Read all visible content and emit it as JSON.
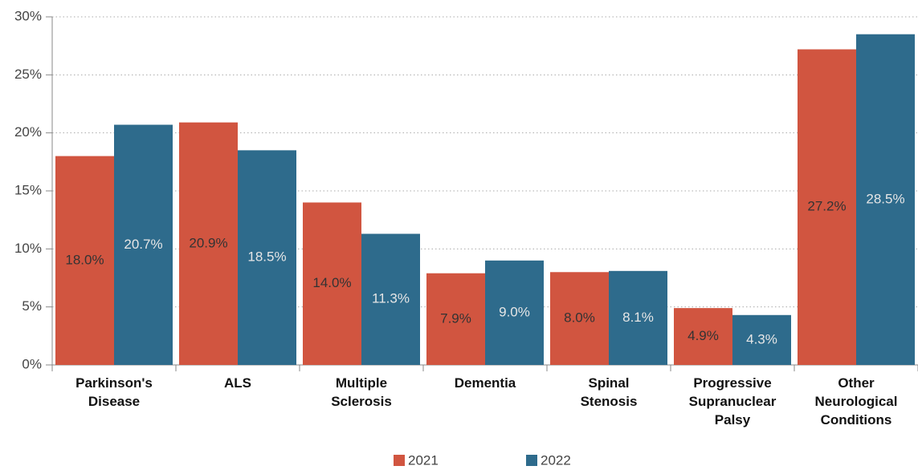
{
  "chart_data": {
    "type": "bar",
    "categories": [
      "Parkinson's Disease",
      "ALS",
      "Multiple Sclerosis",
      "Dementia",
      "Spinal Stenosis",
      "Progressive Supranuclear Palsy",
      "Other Neurological Conditions"
    ],
    "series": [
      {
        "name": "2021",
        "color": "#d15540",
        "values": [
          18.0,
          20.9,
          14.0,
          7.9,
          8.0,
          4.9,
          27.2
        ],
        "value_labels": [
          "18.0%",
          "20.9%",
          "14.0%",
          "7.9%",
          "8.0%",
          "4.9%",
          "27.2%"
        ]
      },
      {
        "name": "2022",
        "color": "#2e6b8c",
        "values": [
          20.7,
          18.5,
          11.3,
          9.0,
          8.1,
          4.3,
          28.5
        ],
        "value_labels": [
          "20.7%",
          "18.5%",
          "11.3%",
          "9.0%",
          "8.1%",
          "4.3%",
          "28.5%"
        ]
      }
    ],
    "ylim": [
      0,
      30
    ],
    "yticks": [
      {
        "value": 0,
        "label": "0%"
      },
      {
        "value": 5,
        "label": "5%"
      },
      {
        "value": 10,
        "label": "10%"
      },
      {
        "value": 15,
        "label": "15%"
      },
      {
        "value": 20,
        "label": "20%"
      },
      {
        "value": 25,
        "label": "25%"
      },
      {
        "value": 30,
        "label": "30%"
      }
    ],
    "grid": true,
    "legend": "bottom"
  }
}
